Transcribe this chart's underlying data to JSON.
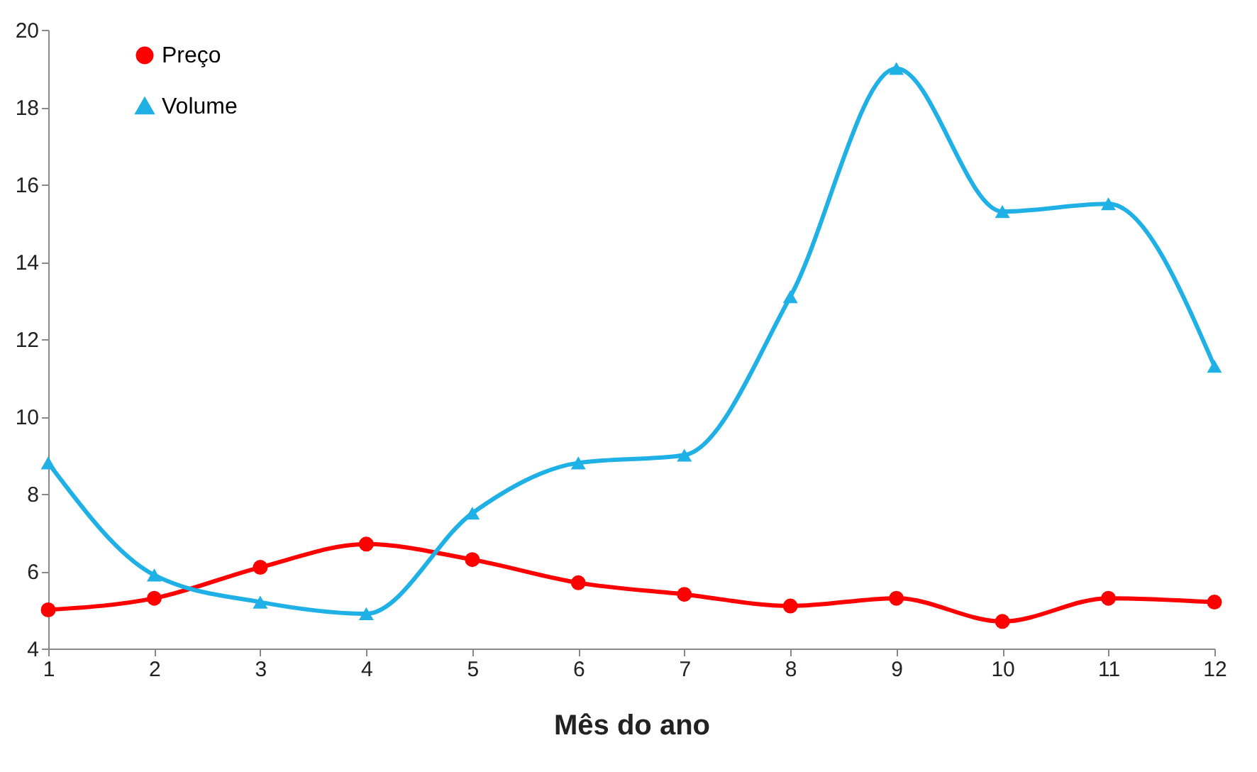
{
  "chart_data": {
    "type": "line",
    "xlabel": "Mês do ano",
    "x": [
      1,
      2,
      3,
      4,
      5,
      6,
      7,
      8,
      9,
      10,
      11,
      12
    ],
    "series": [
      {
        "name": "Preço",
        "color": "#ff0000",
        "marker": "circle",
        "values": [
          5.0,
          5.3,
          6.1,
          6.7,
          6.3,
          5.7,
          5.4,
          5.1,
          5.3,
          4.7,
          5.3,
          5.2
        ]
      },
      {
        "name": "Volume",
        "color": "#1fb1e6",
        "marker": "triangle",
        "values": [
          8.8,
          5.9,
          5.2,
          4.9,
          7.5,
          8.8,
          9.0,
          13.1,
          19.0,
          15.3,
          15.5,
          11.3
        ]
      }
    ],
    "xlim": [
      1,
      12
    ],
    "xticks": [
      1,
      2,
      3,
      4,
      5,
      6,
      7,
      8,
      9,
      10,
      11,
      12
    ],
    "ylim": [
      4,
      20
    ],
    "yticks": [
      4,
      6,
      8,
      10,
      12,
      14,
      16,
      18,
      20
    ],
    "grid": false,
    "legend": "top left"
  }
}
